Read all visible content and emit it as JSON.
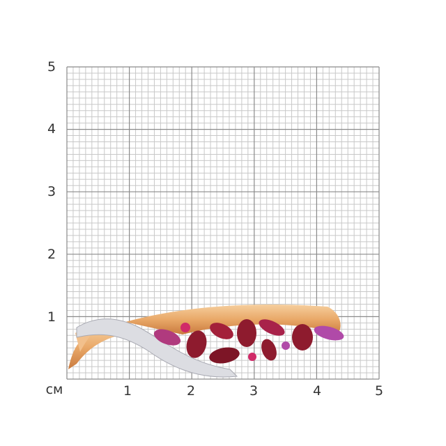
{
  "unit_label": "см",
  "x_ticks": [
    "1",
    "2",
    "3",
    "4",
    "5"
  ],
  "y_ticks": [
    "1",
    "2",
    "3",
    "4",
    "5"
  ],
  "grid": {
    "major_step_cm": 1,
    "minor_step_mm": 1,
    "extent_cm": 5
  },
  "colors": {
    "grid_minor": "#c8c8c8",
    "grid_major": "#8a8a8a",
    "gold": "#e9a868",
    "garnet": "#8e1b2e",
    "rhodolite": "#c2306a",
    "amethyst": "#b04aa8",
    "diamond": "#e8e8ec"
  }
}
